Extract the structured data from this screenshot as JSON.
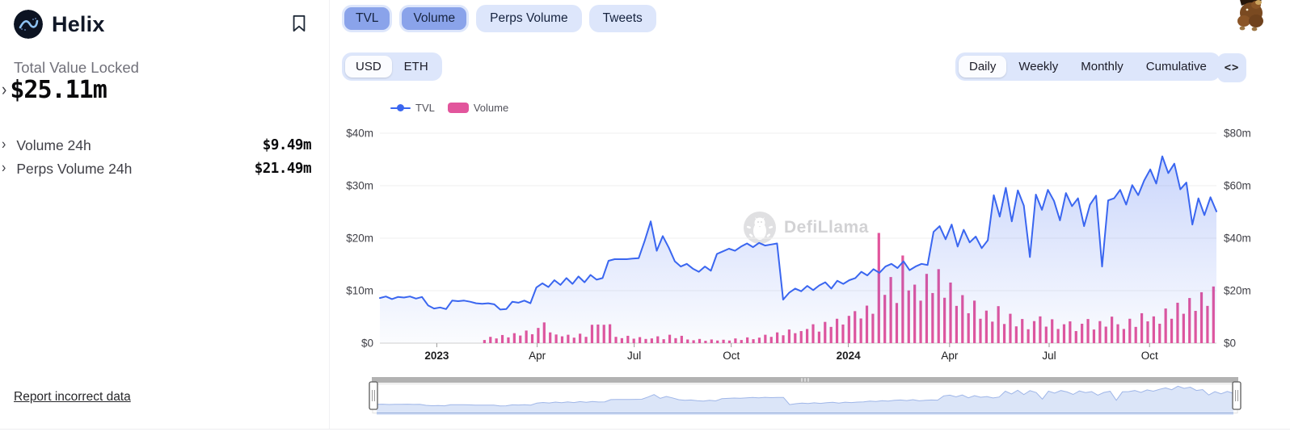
{
  "header": {
    "title": "Helix"
  },
  "stats": {
    "tvl_label": "Total Value Locked",
    "tvl_value": "$25.11m",
    "rows": [
      {
        "label": "Volume 24h",
        "value": "$9.49m"
      },
      {
        "label": "Perps Volume 24h",
        "value": "$21.49m"
      }
    ]
  },
  "footer_link": "Report incorrect data",
  "tabs": [
    {
      "label": "TVL",
      "active": true
    },
    {
      "label": "Volume",
      "active": true
    },
    {
      "label": "Perps Volume",
      "active": false
    },
    {
      "label": "Tweets",
      "active": false
    }
  ],
  "denomination": {
    "options": [
      "USD",
      "ETH"
    ],
    "selected": "USD"
  },
  "interval": {
    "options": [
      "Daily",
      "Weekly",
      "Monthly",
      "Cumulative"
    ],
    "selected": "Daily"
  },
  "embed_label": "<>",
  "watermark": "DefiLlama",
  "colors": {
    "tvl_line": "#3a66f0",
    "volume_bar": "#e2559c",
    "active_tab": "#8aa3ea",
    "light_pill": "#dde6fb",
    "grid": "#eeeeee",
    "axis_text": "#3f3f46"
  },
  "chart_data": {
    "type": "line+bar",
    "title": "",
    "x_range": [
      "Dec 2022",
      "Dec 2024"
    ],
    "x_ticks": [
      {
        "label": "2023",
        "pos": 0.068,
        "bold": true
      },
      {
        "label": "Apr",
        "pos": 0.188,
        "bold": false
      },
      {
        "label": "Jul",
        "pos": 0.304,
        "bold": false
      },
      {
        "label": "Oct",
        "pos": 0.42,
        "bold": false
      },
      {
        "label": "2024",
        "pos": 0.56,
        "bold": true
      },
      {
        "label": "Apr",
        "pos": 0.681,
        "bold": false
      },
      {
        "label": "Jul",
        "pos": 0.8,
        "bold": false
      },
      {
        "label": "Oct",
        "pos": 0.92,
        "bold": false
      }
    ],
    "left_axis": {
      "max": 40,
      "ticks": [
        {
          "label": "$0",
          "value": 0
        },
        {
          "label": "$10m",
          "value": 10
        },
        {
          "label": "$20m",
          "value": 20
        },
        {
          "label": "$30m",
          "value": 30
        },
        {
          "label": "$40m",
          "value": 40
        }
      ]
    },
    "right_axis": {
      "max": 80,
      "ticks": [
        {
          "label": "$0",
          "value": 0
        },
        {
          "label": "$20m",
          "value": 20
        },
        {
          "label": "$40m",
          "value": 40
        },
        {
          "label": "$60m",
          "value": 60
        },
        {
          "label": "$80m",
          "value": 80
        }
      ]
    },
    "grid": true,
    "legend_position": "top",
    "series": [
      {
        "name": "TVL",
        "type": "line",
        "axis": "left",
        "unit": "$m",
        "color": "#3a66f0",
        "values": [
          8.6,
          8.9,
          8.4,
          8.8,
          8.7,
          8.9,
          8.5,
          8.8,
          7.2,
          6.6,
          6.8,
          6.5,
          8.1,
          8.0,
          8.1,
          7.9,
          7.6,
          7.5,
          7.6,
          7.4,
          6.4,
          6.5,
          7.9,
          7.7,
          8.1,
          7.6,
          10.6,
          11.4,
          10.7,
          12.0,
          11.1,
          12.4,
          11.3,
          12.7,
          11.6,
          13.0,
          12.1,
          12.4,
          15.7,
          16.0,
          16.0,
          16.0,
          16.1,
          16.2,
          19.5,
          23.2,
          17.6,
          20.4,
          18.2,
          15.6,
          14.6,
          15.1,
          14.2,
          13.6,
          14.6,
          13.8,
          17.0,
          17.5,
          18.0,
          17.6,
          18.4,
          19.0,
          18.3,
          19.1,
          18.6,
          18.8,
          19.0,
          8.3,
          9.6,
          10.4,
          9.9,
          10.9,
          10.1,
          11.0,
          11.6,
          10.4,
          11.9,
          11.3,
          12.0,
          12.4,
          13.6,
          12.9,
          14.1,
          13.4,
          14.6,
          15.1,
          14.3,
          15.6,
          13.9,
          14.6,
          15.1,
          14.9,
          21.2,
          22.3,
          19.8,
          22.6,
          18.4,
          21.6,
          19.2,
          20.3,
          18.1,
          19.6,
          28.2,
          24.1,
          29.6,
          23.2,
          29.1,
          26.2,
          16.4,
          28.3,
          25.4,
          29.2,
          27.1,
          23.4,
          28.6,
          26.1,
          27.6,
          22.3,
          26.4,
          28.1,
          14.6,
          27.2,
          27.6,
          29.2,
          26.4,
          30.1,
          28.2,
          31.0,
          33.1,
          30.4,
          35.6,
          32.4,
          34.2,
          29.3,
          30.6,
          22.6,
          27.6,
          24.4,
          27.8,
          25.1
        ]
      },
      {
        "name": "Volume",
        "type": "bar",
        "axis": "right",
        "unit": "$m",
        "color": "#e2559c",
        "values": [
          0,
          0,
          0,
          0,
          0,
          0,
          0,
          0,
          0,
          0,
          0,
          0,
          0,
          0,
          0,
          0,
          0,
          1.2,
          2.4,
          1.8,
          3.1,
          2.2,
          3.8,
          2.9,
          4.8,
          3.4,
          5.8,
          7.9,
          4.1,
          3.3,
          2.6,
          3.2,
          2.1,
          3.6,
          2.4,
          7.0,
          7.1,
          7.0,
          7.2,
          2.4,
          1.9,
          2.8,
          1.7,
          2.3,
          1.6,
          1.8,
          2.6,
          1.5,
          3.2,
          1.9,
          2.8,
          1.4,
          1.1,
          1.6,
          0.9,
          1.4,
          1.0,
          1.3,
          1.0,
          1.8,
          1.2,
          2.2,
          1.5,
          2.1,
          3.2,
          2.4,
          4.1,
          3.0,
          5.2,
          3.8,
          4.6,
          5.4,
          7.2,
          4.4,
          8.1,
          6.2,
          9.3,
          7.1,
          10.4,
          12.2,
          9.4,
          14.3,
          11.2,
          42.0,
          18.4,
          25.2,
          15.3,
          33.4,
          20.1,
          22.3,
          16.2,
          26.4,
          19.1,
          28.2,
          17.3,
          23.1,
          14.2,
          18.3,
          11.4,
          16.2,
          9.3,
          12.4,
          8.2,
          14.1,
          7.3,
          11.2,
          6.4,
          9.2,
          5.3,
          8.4,
          10.2,
          6.3,
          9.1,
          5.4,
          7.2,
          8.3,
          4.6,
          7.4,
          9.2,
          5.2,
          8.4,
          6.3,
          10.1,
          7.2,
          5.4,
          9.3,
          6.2,
          11.4,
          8.3,
          10.2,
          7.4,
          13.2,
          9.3,
          15.4,
          11.2,
          17.2,
          12.3,
          19.4,
          14.2,
          21.6
        ]
      }
    ]
  }
}
